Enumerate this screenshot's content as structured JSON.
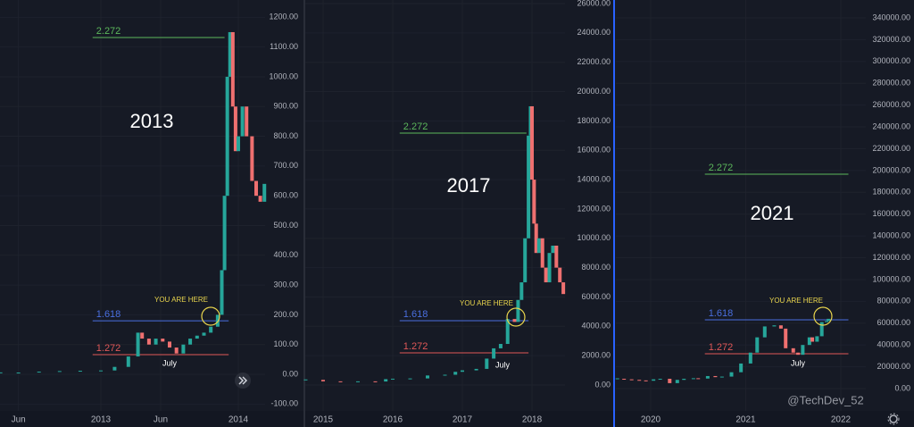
{
  "watermark": "@TechDev_52",
  "chart_data": [
    {
      "type": "candlestick",
      "label": "2013",
      "note": "YOU ARE HERE",
      "marker_label": "July",
      "up_color": "#26a69a",
      "down_color": "#ef7070",
      "xlim": [
        2012.266,
        2014.195
      ],
      "xticks": [
        {
          "value": 2012.4,
          "label": "Jun"
        },
        {
          "value": 2013,
          "label": "2013"
        },
        {
          "value": 2013.435,
          "label": "Jun"
        },
        {
          "value": 2014,
          "label": "2014"
        }
      ],
      "ylim": [
        -123,
        1258
      ],
      "yticks": [
        {
          "value": -100,
          "label": "-100.00"
        },
        {
          "value": 0,
          "label": "0.00"
        },
        {
          "value": 100,
          "label": "100.00"
        },
        {
          "value": 200,
          "label": "200.00"
        },
        {
          "value": 300,
          "label": "300.00"
        },
        {
          "value": 400,
          "label": "400.00"
        },
        {
          "value": 500,
          "label": "500.00"
        },
        {
          "value": 600,
          "label": "600.00"
        },
        {
          "value": 700,
          "label": "700.00"
        },
        {
          "value": 800,
          "label": "800.00"
        },
        {
          "value": 900,
          "label": "900.00"
        },
        {
          "value": 1000,
          "label": "1000.00"
        },
        {
          "value": 1100,
          "label": "1100.00"
        },
        {
          "value": 1200,
          "label": "1200.00"
        }
      ],
      "x": [
        2012.27,
        2012.4,
        2012.55,
        2012.7,
        2012.85,
        2013.0,
        2013.1,
        2013.2,
        2013.27,
        2013.3,
        2013.35,
        2013.4,
        2013.45,
        2013.5,
        2013.55,
        2013.6,
        2013.65,
        2013.7,
        2013.75,
        2013.8,
        2013.85,
        2013.88,
        2013.9,
        2013.92,
        2013.94,
        2013.96,
        2013.98,
        2014.0,
        2014.03,
        2014.06,
        2014.1,
        2014.13,
        2014.16,
        2014.19
      ],
      "values": [
        5,
        6,
        9,
        11,
        12,
        13,
        25,
        60,
        140,
        120,
        100,
        120,
        110,
        90,
        70,
        100,
        120,
        130,
        140,
        160,
        200,
        350,
        600,
        1000,
        1150,
        900,
        750,
        800,
        900,
        800,
        650,
        600,
        580,
        640
      ],
      "levels": [
        {
          "label": "2.272",
          "value": 1132,
          "from": 2012.94,
          "to": 2013.9,
          "color": "#5cb85c"
        },
        {
          "label": "1.618",
          "value": 180,
          "from": 2012.94,
          "to": 2013.93,
          "color": "#4a6fe0"
        },
        {
          "label": "1.272",
          "value": 66,
          "from": 2012.94,
          "to": 2013.93,
          "color": "#e05858"
        }
      ]
    },
    {
      "type": "candlestick",
      "label": "2017",
      "note": "YOU ARE HERE",
      "marker_label": "July",
      "up_color": "#26a69a",
      "down_color": "#ef7070",
      "xlim": [
        2014.744,
        2018.474
      ],
      "xticks": [
        2015,
        2016,
        2017,
        2018
      ],
      "ylim": [
        -1766,
        26244
      ],
      "yticks": [
        {
          "value": 0,
          "label": "0.00"
        },
        {
          "value": 2000,
          "label": "2000.00"
        },
        {
          "value": 4000,
          "label": "4000.00"
        },
        {
          "value": 6000,
          "label": "6000.00"
        },
        {
          "value": 8000,
          "label": "8000.00"
        },
        {
          "value": 10000,
          "label": "10000.00"
        },
        {
          "value": 12000,
          "label": "12000.00"
        },
        {
          "value": 14000,
          "label": "14000.00"
        },
        {
          "value": 16000,
          "label": "16000.00"
        },
        {
          "value": 18000,
          "label": "18000.00"
        },
        {
          "value": 20000,
          "label": "20000.00"
        },
        {
          "value": 22000,
          "label": "22000.00"
        },
        {
          "value": 24000,
          "label": "24000.00"
        },
        {
          "value": 26000,
          "label": "26000.00"
        }
      ],
      "x": [
        2014.75,
        2015.0,
        2015.25,
        2015.5,
        2015.75,
        2015.9,
        2016.0,
        2016.25,
        2016.5,
        2016.75,
        2016.9,
        2017.0,
        2017.2,
        2017.35,
        2017.45,
        2017.55,
        2017.65,
        2017.75,
        2017.8,
        2017.85,
        2017.9,
        2017.95,
        2017.98,
        2018.0,
        2018.03,
        2018.06,
        2018.1,
        2018.15,
        2018.2,
        2018.25,
        2018.3,
        2018.35,
        2018.4,
        2018.45
      ],
      "values": [
        350,
        250,
        240,
        250,
        240,
        400,
        430,
        450,
        650,
        700,
        900,
        1000,
        1100,
        1800,
        2500,
        2800,
        4500,
        4300,
        5800,
        7000,
        10000,
        17000,
        19000,
        14000,
        11000,
        9000,
        10000,
        8000,
        7000,
        9000,
        9500,
        8000,
        7000,
        6200
      ],
      "levels": [
        {
          "label": "2.272",
          "value": 17171,
          "from": 2016.1,
          "to": 2017.92,
          "color": "#5cb85c"
        },
        {
          "label": "1.618",
          "value": 4384,
          "from": 2016.1,
          "to": 2017.95,
          "color": "#4a6fe0"
        },
        {
          "label": "1.272",
          "value": 2192,
          "from": 2016.1,
          "to": 2017.95,
          "color": "#e05858"
        }
      ]
    },
    {
      "type": "candlestick",
      "label": "2021",
      "note": "YOU ARE HERE",
      "marker_label": "July",
      "up_color": "#26a69a",
      "down_color": "#ef7070",
      "xlim": [
        2019.634,
        2022.263
      ],
      "xticks": [
        2020,
        2021,
        2022
      ],
      "ylim": [
        -20480,
        356380
      ],
      "yticks": [
        {
          "value": 0,
          "label": "0.00"
        },
        {
          "value": 20000,
          "label": "20000.00"
        },
        {
          "value": 40000,
          "label": "40000.00"
        },
        {
          "value": 60000,
          "label": "60000.00"
        },
        {
          "value": 80000,
          "label": "80000.00"
        },
        {
          "value": 100000,
          "label": "100000.00"
        },
        {
          "value": 120000,
          "label": "120000.00"
        },
        {
          "value": 140000,
          "label": "140000.00"
        },
        {
          "value": 160000,
          "label": "160000.00"
        },
        {
          "value": 180000,
          "label": "180000.00"
        },
        {
          "value": 200000,
          "label": "200000.00"
        },
        {
          "value": 220000,
          "label": "220000.00"
        },
        {
          "value": 240000,
          "label": "240000.00"
        },
        {
          "value": 260000,
          "label": "260000.00"
        },
        {
          "value": 280000,
          "label": "280000.00"
        },
        {
          "value": 300000,
          "label": "300000.00"
        },
        {
          "value": 320000,
          "label": "320000.00"
        },
        {
          "value": 340000,
          "label": "340000.00"
        }
      ],
      "x": [
        2019.65,
        2019.72,
        2019.8,
        2019.88,
        2019.95,
        2020.03,
        2020.1,
        2020.2,
        2020.28,
        2020.35,
        2020.45,
        2020.5,
        2020.6,
        2020.68,
        2020.75,
        2020.85,
        2020.95,
        2021.05,
        2021.12,
        2021.2,
        2021.3,
        2021.37,
        2021.42,
        2021.5,
        2021.55,
        2021.6,
        2021.67,
        2021.7,
        2021.75,
        2021.8,
        2021.85,
        2021.87
      ],
      "values": [
        9000,
        8500,
        8000,
        7500,
        7200,
        8500,
        9000,
        5000,
        8000,
        9000,
        9500,
        9200,
        11500,
        10500,
        11000,
        15000,
        23000,
        33000,
        47000,
        57000,
        58000,
        55000,
        37000,
        33000,
        31000,
        40000,
        47000,
        43000,
        48000,
        61000,
        62000,
        64000
      ],
      "levels": [
        {
          "label": "2.272",
          "value": 196620,
          "from": 2020.57,
          "to": 2022.08,
          "color": "#5cb85c"
        },
        {
          "label": "1.618",
          "value": 63084,
          "from": 2020.57,
          "to": 2022.08,
          "color": "#4a6fe0"
        },
        {
          "label": "1.272",
          "value": 31952,
          "from": 2020.57,
          "to": 2022.08,
          "color": "#e05858"
        }
      ]
    }
  ]
}
